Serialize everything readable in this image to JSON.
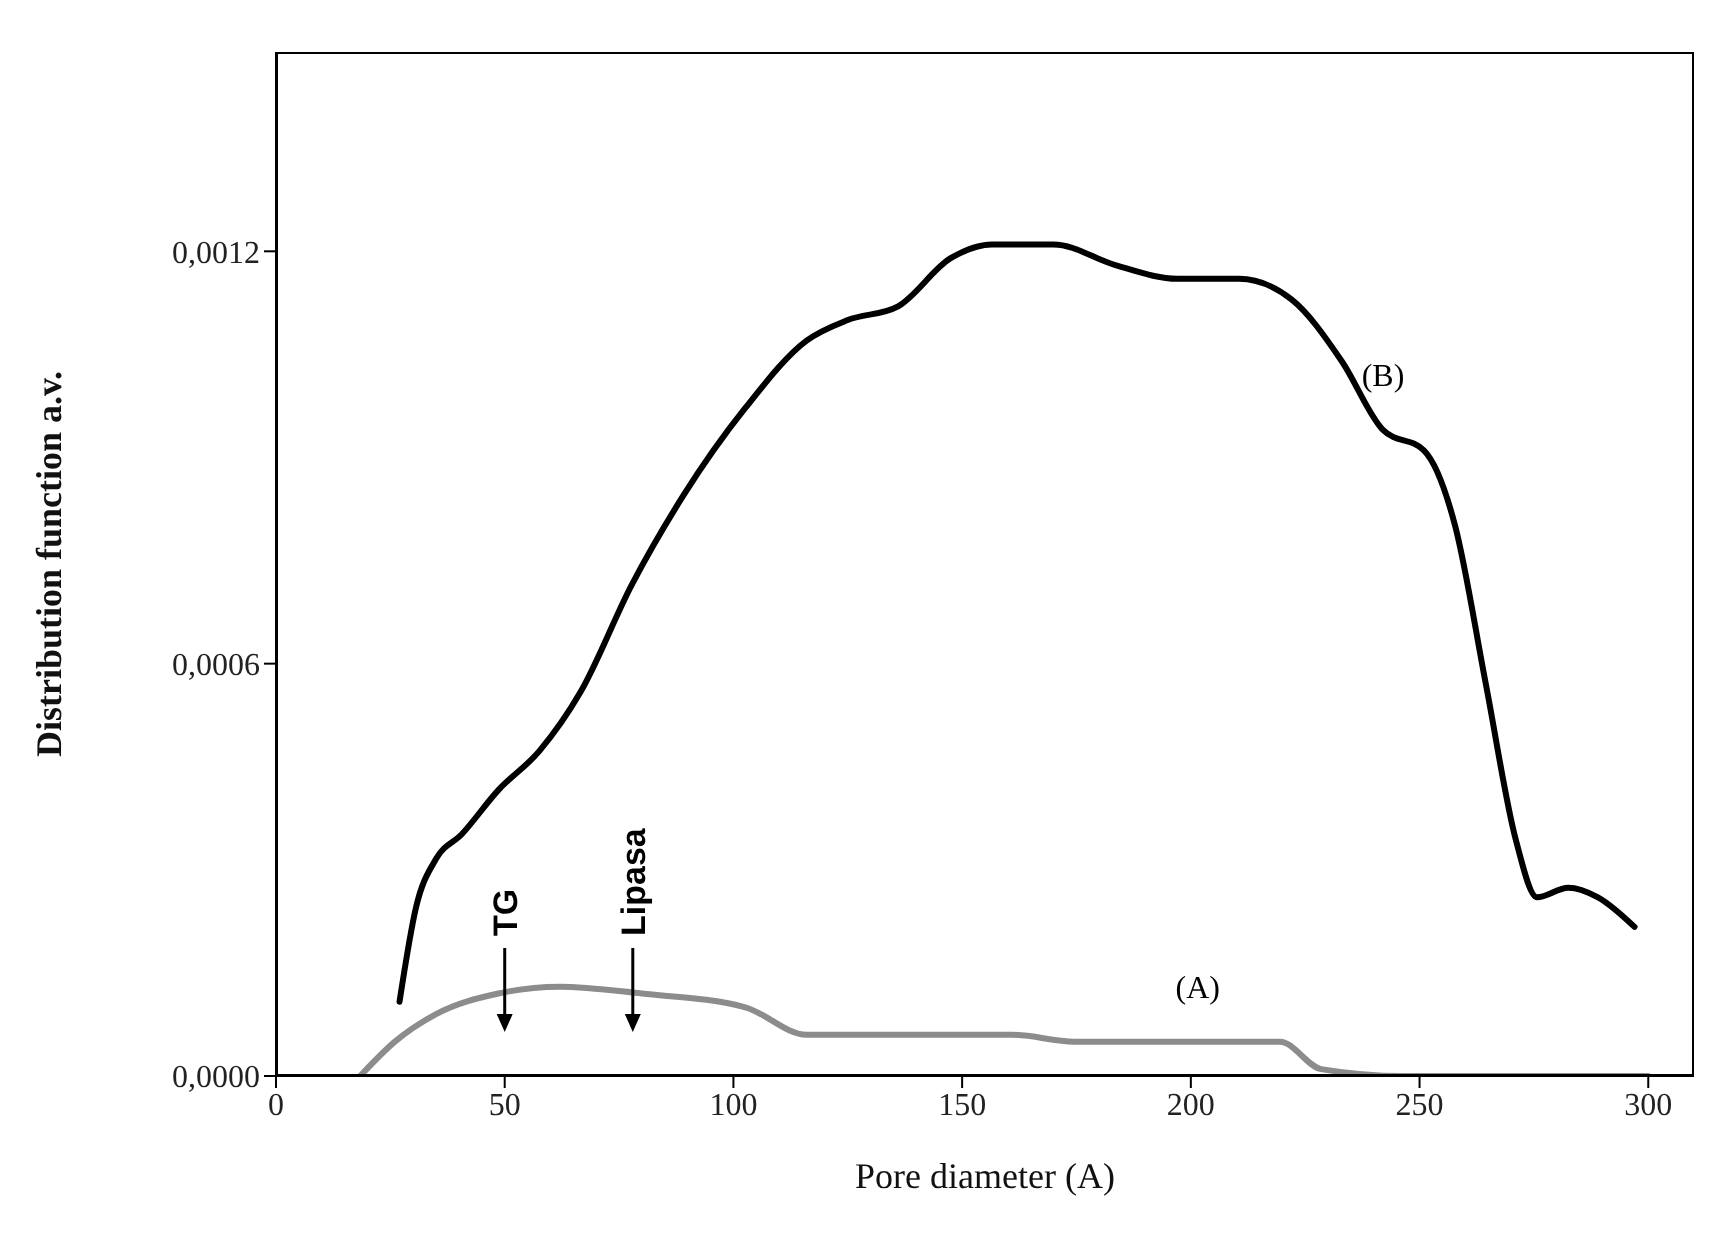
{
  "chart_data": {
    "type": "line",
    "xlabel": "Pore diameter (A)",
    "ylabel": "Distribution function a.v.",
    "xlim": [
      0,
      310
    ],
    "xticks": [
      0,
      50,
      100,
      150,
      200,
      250,
      300
    ],
    "ylim": [
      0,
      0.00149
    ],
    "yticks": [
      {
        "value": 0,
        "label": "0,0000"
      },
      {
        "value": 0.0006,
        "label": "0,0006"
      },
      {
        "value": 0.0012,
        "label": "0,0012"
      }
    ],
    "grid": false,
    "legend": false,
    "marker": "none",
    "line_style": "solid",
    "ref_lines": [
      {
        "axis": "x",
        "value": 50,
        "label": "TG"
      },
      {
        "axis": "x",
        "value": 78,
        "label": "Lipasa"
      }
    ],
    "series": [
      {
        "name": "(B)",
        "color": "#000000",
        "x": [
          27,
          30.6,
          35,
          40.5,
          48.6,
          57.6,
          66.6,
          77.8,
          89,
          102.6,
          116,
          125,
          136,
          147.5,
          156.5,
          170,
          183.5,
          197,
          210.5,
          222,
          233,
          242,
          251,
          257.8,
          264.5,
          271,
          275.7,
          282.5,
          289,
          297
        ],
        "values": [
          0.000108,
          0.000245,
          0.000316,
          0.000351,
          0.000416,
          0.000473,
          0.000559,
          0.000715,
          0.000844,
          0.000972,
          0.00107,
          0.0011,
          0.00112,
          0.00119,
          0.00121,
          0.00121,
          0.00118,
          0.00116,
          0.00116,
          0.00113,
          0.00104,
          0.00094,
          0.00091,
          0.0008,
          0.00057,
          0.000345,
          0.00026,
          0.000274,
          0.00026,
          0.000217
        ]
      },
      {
        "name": "(A)",
        "color": "#8c8c8c",
        "x": [
          18.4,
          26,
          35,
          48.6,
          62,
          80,
          102.6,
          116,
          134,
          161,
          174.5,
          201.5,
          219.5,
          228.5,
          246.5,
          300
        ],
        "values": [
          0,
          5e-05,
          9e-05,
          0.00012,
          0.00013,
          0.00012,
          0.0001,
          6e-05,
          6e-05,
          6e-05,
          5e-05,
          5e-05,
          5e-05,
          1e-05,
          0,
          0
        ]
      }
    ]
  }
}
